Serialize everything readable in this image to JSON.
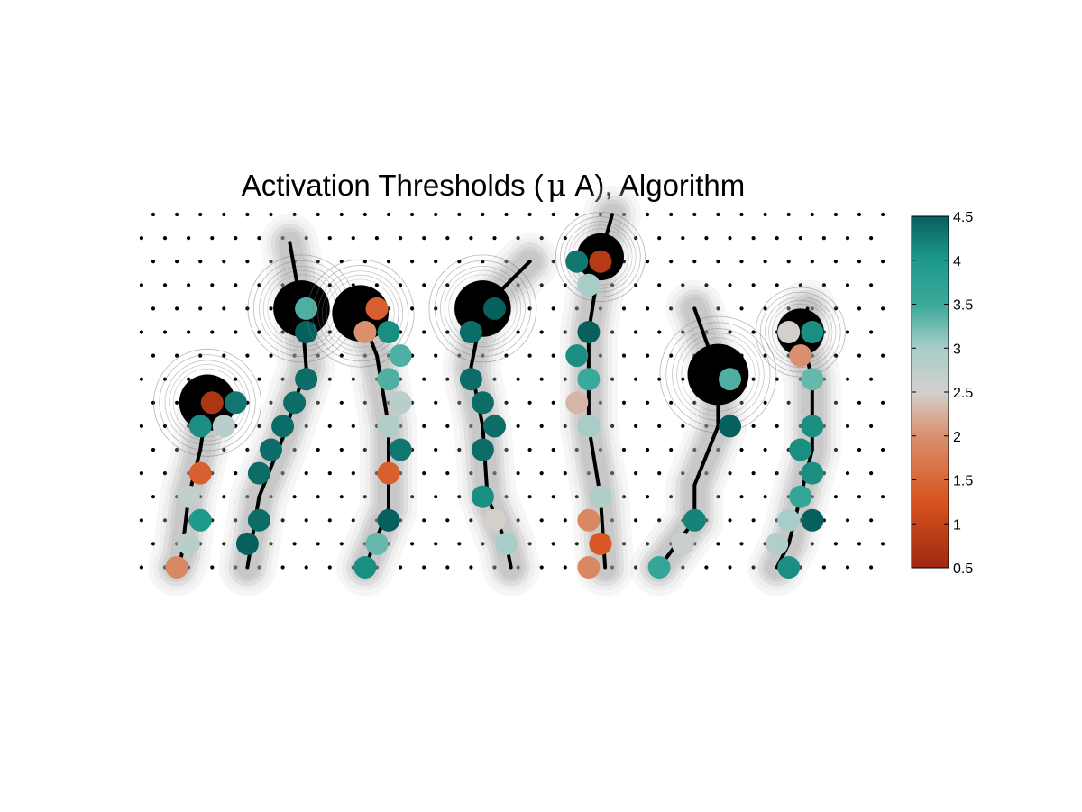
{
  "chart_data": {
    "type": "scatter",
    "title": "Activation Thresholds (",
    "title_mu": "μ",
    "title_end": " A), Algorithm",
    "colorbar": {
      "min": 0.5,
      "max": 4.5,
      "ticks": [
        4.5,
        4,
        3.5,
        3,
        2.5,
        2,
        1.5,
        1,
        0.5
      ],
      "tick_labels": [
        "4.5",
        "4",
        "3.5",
        "3",
        "2.5",
        "2",
        "1.5",
        "1",
        "0.5"
      ],
      "colormap": [
        {
          "v": 0.5,
          "c": "#9e2a10"
        },
        {
          "v": 1.25,
          "c": "#d8531f"
        },
        {
          "v": 2.0,
          "c": "#d8906e"
        },
        {
          "v": 2.5,
          "c": "#d3d0cc"
        },
        {
          "v": 3.0,
          "c": "#a8cdc8"
        },
        {
          "v": 3.5,
          "c": "#3aa89a"
        },
        {
          "v": 4.0,
          "c": "#1e9a8a"
        },
        {
          "v": 4.5,
          "c": "#07605e"
        }
      ]
    },
    "grid": {
      "cols": 32,
      "rows": 16
    },
    "neurons": [
      {
        "soma": [
          2.3,
          8.0
        ],
        "soma_r": 1.2,
        "axon": [
          [
            2.3,
            8.0
          ],
          [
            2.0,
            10.0
          ],
          [
            1.5,
            12.0
          ],
          [
            1.2,
            14.5
          ],
          [
            1.0,
            15.0
          ]
        ],
        "points": [
          [
            2.5,
            8.0,
            0.7
          ],
          [
            3.5,
            8.0,
            4.3
          ],
          [
            2.0,
            9.0,
            4.1
          ],
          [
            3.0,
            9.0,
            2.8
          ],
          [
            2.0,
            11.0,
            1.4
          ],
          [
            1.5,
            12.0,
            2.7
          ],
          [
            2.0,
            13.0,
            4.0
          ],
          [
            1.5,
            14.0,
            2.8
          ],
          [
            1.0,
            15.0,
            1.9
          ]
        ]
      },
      {
        "soma": [
          6.3,
          4.0
        ],
        "soma_r": 1.2,
        "axon": [
          [
            5.8,
            1.2
          ],
          [
            6.3,
            4.0
          ],
          [
            6.5,
            6.5
          ],
          [
            5.5,
            9.5
          ],
          [
            4.5,
            12.0
          ],
          [
            4.0,
            15.0
          ]
        ],
        "points": [
          [
            6.5,
            4.0,
            3.4
          ],
          [
            6.5,
            5.0,
            4.5
          ],
          [
            6.5,
            7.0,
            4.4
          ],
          [
            6.0,
            8.0,
            4.4
          ],
          [
            5.5,
            9.0,
            4.4
          ],
          [
            5.0,
            10.0,
            4.4
          ],
          [
            4.5,
            11.0,
            4.4
          ],
          [
            4.5,
            13.0,
            4.4
          ],
          [
            4.0,
            14.0,
            4.5
          ]
        ]
      },
      {
        "soma": [
          8.8,
          4.2
        ],
        "soma_r": 1.2,
        "axon": [
          [
            8.8,
            4.2
          ],
          [
            9.5,
            6.0
          ],
          [
            10.0,
            9.0
          ],
          [
            10.0,
            12.5
          ],
          [
            9.0,
            15.0
          ]
        ],
        "points": [
          [
            9.5,
            4.0,
            1.4
          ],
          [
            9.0,
            5.0,
            2.0
          ],
          [
            10.0,
            5.0,
            4.1
          ],
          [
            10.5,
            6.0,
            3.4
          ],
          [
            10.0,
            7.0,
            3.4
          ],
          [
            10.5,
            8.0,
            2.8
          ],
          [
            10.0,
            9.0,
            2.9
          ],
          [
            10.5,
            10.0,
            4.3
          ],
          [
            10.0,
            11.0,
            1.4
          ],
          [
            10.0,
            13.0,
            4.5
          ],
          [
            9.5,
            14.0,
            3.3
          ],
          [
            9.0,
            15.0,
            4.1
          ]
        ]
      },
      {
        "soma": [
          14.0,
          4.0
        ],
        "soma_r": 1.2,
        "axon": [
          [
            16.0,
            2.0
          ],
          [
            14.0,
            4.0
          ],
          [
            13.5,
            6.5
          ],
          [
            14.0,
            9.0
          ],
          [
            14.2,
            12.0
          ],
          [
            15.0,
            14.0
          ],
          [
            15.2,
            15.0
          ]
        ],
        "points": [
          [
            14.5,
            4.0,
            4.5
          ],
          [
            13.5,
            5.0,
            4.4
          ],
          [
            13.5,
            7.0,
            4.4
          ],
          [
            14.0,
            8.0,
            4.4
          ],
          [
            14.5,
            9.0,
            4.4
          ],
          [
            14.0,
            10.0,
            4.4
          ],
          [
            14.0,
            12.0,
            4.1
          ],
          [
            14.5,
            13.0,
            2.5
          ],
          [
            15.0,
            14.0,
            3.0
          ]
        ]
      },
      {
        "soma": [
          19.0,
          1.8
        ],
        "soma_r": 1.0,
        "axon": [
          [
            19.5,
            0.0
          ],
          [
            19.0,
            1.8
          ],
          [
            18.5,
            5.0
          ],
          [
            18.5,
            9.0
          ],
          [
            19.0,
            12.0
          ],
          [
            19.2,
            15.0
          ]
        ],
        "points": [
          [
            18.0,
            2.0,
            4.3
          ],
          [
            19.0,
            2.0,
            0.8
          ],
          [
            18.5,
            3.0,
            3.0
          ],
          [
            18.5,
            5.0,
            4.5
          ],
          [
            18.0,
            6.0,
            4.1
          ],
          [
            18.5,
            7.0,
            3.5
          ],
          [
            18.0,
            8.0,
            2.3
          ],
          [
            18.5,
            9.0,
            3.0
          ],
          [
            19.0,
            12.0,
            2.9
          ],
          [
            18.5,
            13.0,
            1.9
          ],
          [
            19.0,
            14.0,
            1.3
          ],
          [
            18.5,
            15.0,
            1.9
          ]
        ]
      },
      {
        "soma": [
          24.0,
          6.8
        ],
        "soma_r": 1.3,
        "axon": [
          [
            23.0,
            4.0
          ],
          [
            24.0,
            6.8
          ],
          [
            24.0,
            9.0
          ],
          [
            23.0,
            11.5
          ],
          [
            23.0,
            13.0
          ],
          [
            21.5,
            15.0
          ]
        ],
        "points": [
          [
            24.5,
            7.0,
            3.4
          ],
          [
            24.5,
            9.0,
            4.5
          ],
          [
            23.0,
            13.0,
            4.2
          ],
          [
            22.5,
            14.0,
            2.6
          ],
          [
            21.5,
            15.0,
            3.6
          ]
        ]
      },
      {
        "soma": [
          27.5,
          5.0
        ],
        "soma_r": 1.0,
        "axon": [
          [
            27.8,
            4.0
          ],
          [
            27.5,
            5.0
          ],
          [
            28.0,
            7.0
          ],
          [
            28.0,
            10.0
          ],
          [
            27.5,
            12.0
          ],
          [
            27.0,
            14.0
          ],
          [
            26.5,
            15.0
          ]
        ],
        "points": [
          [
            27.0,
            5.0,
            2.5
          ],
          [
            28.0,
            5.0,
            4.1
          ],
          [
            27.5,
            6.0,
            2.0
          ],
          [
            28.0,
            7.0,
            3.3
          ],
          [
            28.0,
            9.0,
            4.1
          ],
          [
            27.5,
            10.0,
            4.1
          ],
          [
            28.0,
            11.0,
            4.1
          ],
          [
            27.5,
            12.0,
            3.6
          ],
          [
            27.0,
            13.0,
            3.0
          ],
          [
            28.0,
            13.0,
            4.5
          ],
          [
            26.5,
            14.0,
            2.9
          ],
          [
            27.0,
            15.0,
            4.1
          ]
        ]
      }
    ]
  }
}
